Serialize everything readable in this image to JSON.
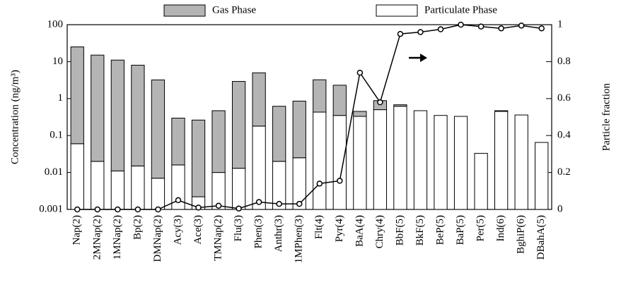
{
  "chart_data": {
    "type": "bar",
    "y_scale": "log",
    "y_label": "Concentration (ng/m³)",
    "y2_label": "Particle fraction",
    "categories": [
      "Nap(2)",
      "2MNap(2)",
      "1MNap(2)",
      "Bp(2)",
      "DMNap(2)",
      "Acy(3)",
      "Ace(3)",
      "TMNap(2)",
      "Flu(3)",
      "Phen(3)",
      "Anthr(3)",
      "1MPhen(3)",
      "Flt(4)",
      "Pyr(4)",
      "BaA(4)",
      "Chry(4)",
      "BbF(5)",
      "BkF(5)",
      "BeP(5)",
      "BaP(5)",
      "Per(5)",
      "Ind(6)",
      "BghiP(6)",
      "DBahA(5)"
    ],
    "series": [
      {
        "name": "Particulate Phase",
        "color": "#ffffff",
        "values": [
          0.06,
          0.02,
          0.011,
          0.015,
          0.007,
          0.016,
          0.0022,
          0.01,
          0.013,
          0.18,
          0.02,
          0.025,
          0.43,
          0.35,
          0.33,
          0.5,
          0.62,
          0.47,
          0.35,
          0.33,
          0.033,
          0.45,
          0.36,
          0.065
        ]
      },
      {
        "name": "Gas Phase",
        "color": "#b4b4b4",
        "values": [
          25,
          15,
          11,
          8,
          3.2,
          0.28,
          0.26,
          0.46,
          2.9,
          4.8,
          0.6,
          0.83,
          2.8,
          1.95,
          0.12,
          0.38,
          0.06,
          0,
          0,
          0,
          0,
          0.02,
          0,
          0
        ]
      }
    ],
    "line": {
      "axis": "y2",
      "color": "#000000",
      "values": [
        0,
        0,
        0,
        0,
        0,
        0.05,
        0.01,
        0.02,
        0.005,
        0.04,
        0.03,
        0.03,
        0.14,
        0.155,
        0.74,
        0.58,
        0.95,
        0.96,
        0.975,
        1.0,
        0.99,
        0.98,
        0.995,
        0.98
      ]
    },
    "ylim": [
      0.001,
      100
    ],
    "yticks": [
      0.001,
      0.01,
      0.1,
      1,
      10,
      100
    ],
    "y2lim": [
      0,
      1
    ],
    "y2ticks": [
      0,
      0.2,
      0.4,
      0.6,
      0.8,
      1
    ],
    "legend": "top"
  }
}
